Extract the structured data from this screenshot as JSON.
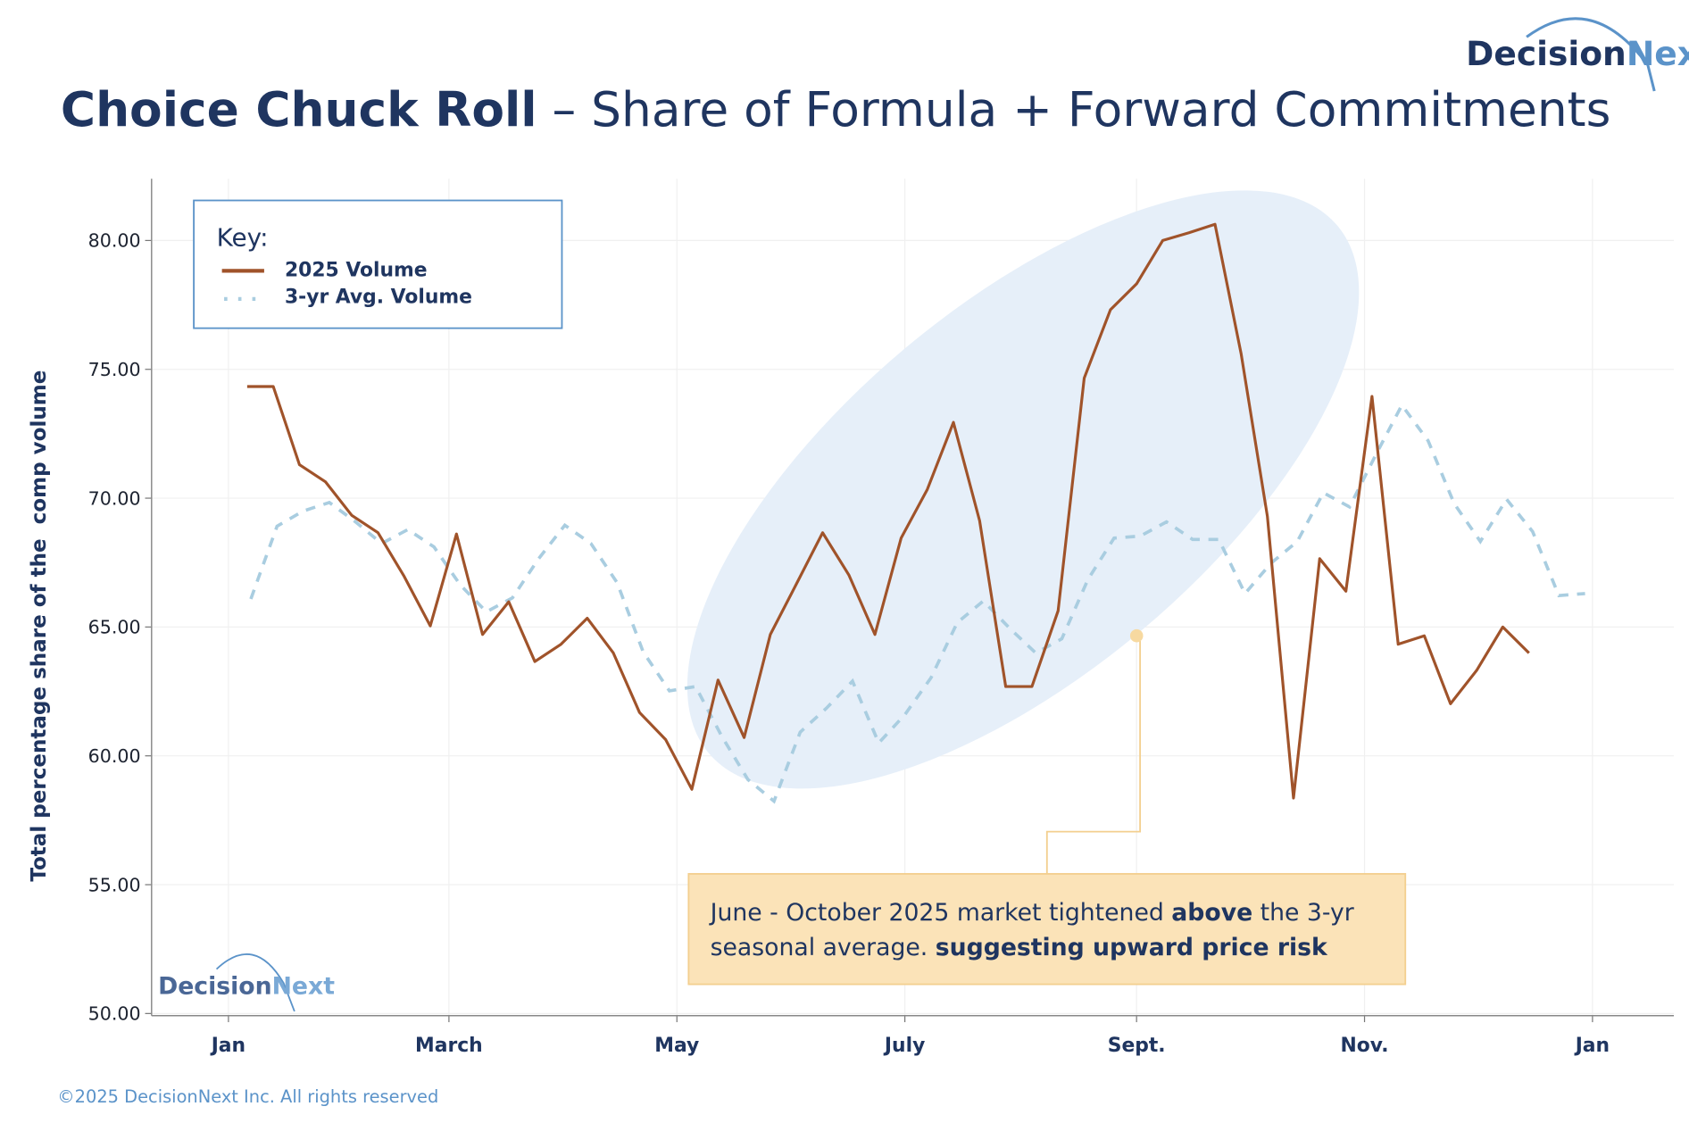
{
  "header": {
    "title_bold": "Choice Chuck Roll",
    "title_rest": " – Share of Formula + Forward Commitments",
    "logo_text_a": "Decision",
    "logo_text_b": "Next"
  },
  "footer": {
    "copyright": "©2025 DecisionNext Inc. All rights reserved"
  },
  "colors": {
    "series_2025": "#a0532a",
    "series_avg": "#a9cde0",
    "highlight": "#e6eff9",
    "annotation_bg": "#fbe3b8",
    "annotation_border": "#f3cf8f",
    "title": "#1f3560",
    "accent": "#5b93c9"
  },
  "legend": {
    "title": "Key:",
    "items": [
      "2025 Volume",
      "3-yr Avg. Volume"
    ]
  },
  "annotation": {
    "line1_a": "June - October 2025 market tightened ",
    "line1_b": "above",
    "line1_c": " the 3-yr",
    "line2_a": "seasonal average. ",
    "line2_b": "suggesting upward price risk",
    "anchor": {
      "x": "2025-09-01",
      "y": 64.66
    }
  },
  "chart_data": {
    "type": "line",
    "title": "Choice Chuck Roll – Share of Formula + Forward Commitments",
    "xlabel": "",
    "ylabel": "Total percentage share of the  comp volume",
    "ylim": [
      50,
      82
    ],
    "yticks": [
      "50.00",
      "55.00",
      "60.00",
      "65.00",
      "70.00",
      "75.00",
      "80.00"
    ],
    "xticks": [
      "Jan",
      "March",
      "May",
      "July",
      "Sept.",
      "Nov.",
      "Jan"
    ],
    "xlim": [
      "2024-12-20",
      "2026-01-20"
    ],
    "grid": true,
    "legend_position": "top-left",
    "highlight_region": "June - October 2025",
    "series": [
      {
        "name": "2025 Volume",
        "style": "solid",
        "start": "2025-01-06",
        "interval_days": 7,
        "values": [
          74.33,
          74.33,
          71.3,
          70.63,
          69.33,
          68.66,
          66.97,
          65.04,
          68.61,
          64.71,
          65.98,
          63.66,
          64.33,
          65.34,
          63.99,
          61.68,
          60.63,
          58.7,
          62.94,
          60.71,
          64.71,
          66.68,
          68.66,
          67.02,
          64.71,
          68.45,
          70.34,
          72.94,
          69.12,
          62.69,
          62.69,
          65.63,
          74.66,
          77.31,
          78.32,
          80.0,
          80.3,
          80.63,
          75.59,
          69.29,
          58.36,
          67.65,
          66.39,
          73.95,
          64.33,
          64.66,
          62.02,
          63.32,
          65.0,
          63.99
        ]
      },
      {
        "name": "3-yr Avg. Volume",
        "style": "dashed",
        "start": "2025-01-07",
        "interval_days": 7,
        "values": [
          66.09,
          68.91,
          69.5,
          69.83,
          69.08,
          68.24,
          68.78,
          68.11,
          66.64,
          65.59,
          66.13,
          67.65,
          68.95,
          68.24,
          66.72,
          64.03,
          62.52,
          62.69,
          60.76,
          59.08,
          58.24,
          60.92,
          61.85,
          62.9,
          60.5,
          61.6,
          63.03,
          65.17,
          66.01,
          64.96,
          63.99,
          64.54,
          66.85,
          68.45,
          68.53,
          69.08,
          68.4,
          68.4,
          66.3,
          67.48,
          68.32,
          70.21,
          69.66,
          71.68,
          73.61,
          72.23,
          69.79,
          68.32,
          69.96,
          68.7,
          66.22,
          66.3
        ]
      }
    ]
  }
}
